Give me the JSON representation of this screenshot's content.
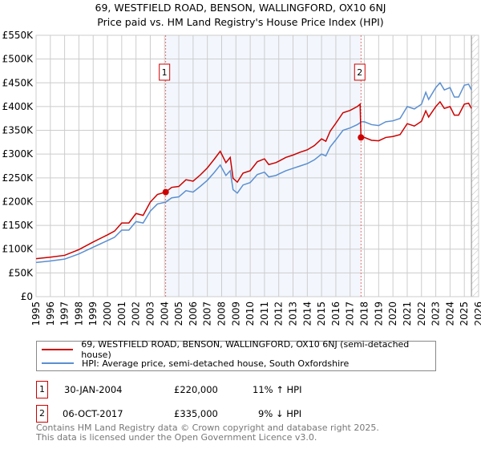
{
  "title": "69, WESTFIELD ROAD, BENSON, WALLINGFORD, OX10 6NJ",
  "subtitle": "Price paid vs. HM Land Registry's House Price Index (HPI)",
  "chart_data": {
    "type": "line",
    "xlim": [
      1995,
      2026
    ],
    "ylim": [
      0,
      550000
    ],
    "yticks": [
      0,
      50000,
      100000,
      150000,
      200000,
      250000,
      300000,
      350000,
      400000,
      450000,
      500000,
      550000
    ],
    "ytick_labels": [
      "£0",
      "£50K",
      "£100K",
      "£150K",
      "£200K",
      "£250K",
      "£300K",
      "£350K",
      "£400K",
      "£450K",
      "£500K",
      "£550K"
    ],
    "xticks": [
      1995,
      1996,
      1997,
      1998,
      1999,
      2000,
      2001,
      2002,
      2003,
      2004,
      2005,
      2006,
      2007,
      2008,
      2009,
      2010,
      2011,
      2012,
      2013,
      2014,
      2015,
      2016,
      2017,
      2018,
      2019,
      2020,
      2021,
      2022,
      2023,
      2024,
      2025,
      2026
    ],
    "x": [
      1995,
      1996,
      1997,
      1998,
      1999,
      2000,
      2000.5,
      2001,
      2001.5,
      2002,
      2002.5,
      2003,
      2003.5,
      2004.08,
      2004.5,
      2005,
      2005.5,
      2006,
      2006.5,
      2007,
      2007.5,
      2007.9,
      2008.3,
      2008.6,
      2008.8,
      2009.1,
      2009.5,
      2010,
      2010.5,
      2011,
      2011.3,
      2011.8,
      2012,
      2012.5,
      2013,
      2013.5,
      2014,
      2014.5,
      2015,
      2015.3,
      2015.6,
      2016,
      2016.5,
      2017,
      2017.5,
      2017.7,
      2017.76,
      2018,
      2018.5,
      2019,
      2019.5,
      2020,
      2020.5,
      2021,
      2021.5,
      2022,
      2022.3,
      2022.5,
      2023,
      2023.3,
      2023.6,
      2024,
      2024.3,
      2024.6,
      2025,
      2025.3,
      2025.5
    ],
    "series": [
      {
        "name": "69, WESTFIELD ROAD, BENSON, WALLINGFORD, OX10 6NJ (semi-detached house)",
        "color": "#cc0000",
        "values": [
          80000,
          83000,
          87000,
          99000,
          115000,
          130000,
          138000,
          155000,
          155000,
          175000,
          171000,
          199000,
          215000,
          220000,
          230000,
          232000,
          246000,
          243000,
          256000,
          271000,
          290000,
          306000,
          282000,
          293000,
          249000,
          241000,
          260000,
          265000,
          284000,
          290000,
          278000,
          282000,
          285000,
          293000,
          298000,
          304000,
          309000,
          318000,
          332000,
          327000,
          348000,
          365000,
          387000,
          392000,
          400000,
          405000,
          335000,
          335000,
          329000,
          328000,
          335000,
          337000,
          341000,
          364000,
          359000,
          369000,
          391000,
          378000,
          400000,
          410000,
          396000,
          400000,
          382000,
          382000,
          405000,
          407000,
          396000
        ]
      },
      {
        "name": "HPI: Average price, semi-detached house, South Oxfordshire",
        "color": "#5b8fd0",
        "values": [
          72000,
          75000,
          79000,
          90000,
          104000,
          118000,
          125000,
          140000,
          140000,
          158000,
          155000,
          180000,
          195000,
          199000,
          208000,
          210000,
          223000,
          220000,
          232000,
          245000,
          262000,
          277000,
          255000,
          265000,
          225000,
          218000,
          235000,
          240000,
          257000,
          262000,
          252000,
          255000,
          258000,
          265000,
          270000,
          275000,
          280000,
          288000,
          300000,
          296000,
          315000,
          330000,
          350000,
          355000,
          362000,
          366000,
          368000,
          368000,
          362000,
          360000,
          368000,
          370000,
          375000,
          400000,
          395000,
          405000,
          430000,
          415000,
          440000,
          450000,
          435000,
          440000,
          420000,
          420000,
          445000,
          447000,
          435000
        ]
      }
    ],
    "sales": [
      {
        "label": "1",
        "x": 2004.08,
        "price": 220000,
        "date": "30-JAN-2004",
        "price_text": "£220,000",
        "hpi_text": "11% ↑ HPI"
      },
      {
        "label": "2",
        "x": 2017.76,
        "price": 335000,
        "date": "06-OCT-2017",
        "price_text": "£335,000",
        "hpi_text": "9% ↓ HPI"
      }
    ],
    "shaded_range": [
      2004.08,
      2017.76
    ],
    "forecast_hatch_from": 2025.5,
    "legend_placement": "below"
  },
  "footer": [
    "Contains HM Land Registry data © Crown copyright and database right 2025.",
    "This data is licensed under the Open Government Licence v3.0."
  ]
}
